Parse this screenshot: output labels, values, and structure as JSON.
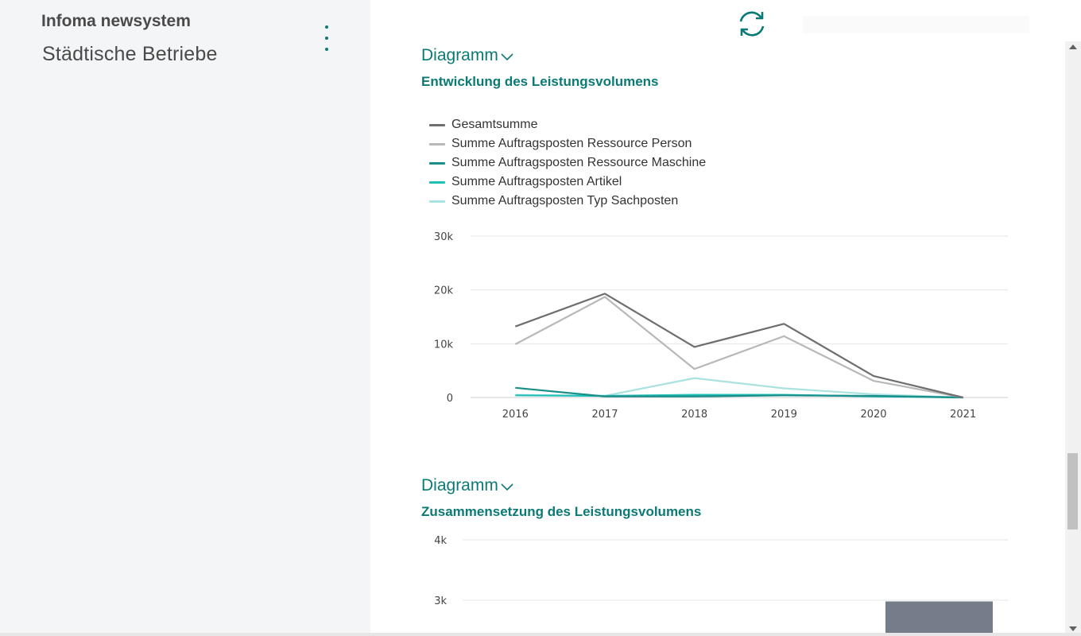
{
  "sidebar": {
    "app_name": "Infoma newsystem",
    "company": "Städtische Betriebe"
  },
  "icons": {
    "menu": "more-vertical-icon",
    "refresh": "refresh-icon",
    "chevron": "chevron-down-icon"
  },
  "colors": {
    "accent": "#0b7a75",
    "sidebar_bg": "#f4f5f7"
  },
  "section1": {
    "heading": "Diagramm",
    "chart_title": "Entwicklung des Leistungsvolumens"
  },
  "section2": {
    "heading": "Diagramm",
    "chart_title": "Zusammensetzung des Leistungsvolumens"
  },
  "chart_data": [
    {
      "type": "line",
      "title": "Entwicklung des Leistungsvolumens",
      "x": [
        "2016",
        "2017",
        "2018",
        "2019",
        "2020",
        "2021"
      ],
      "ylim": [
        0,
        30000
      ],
      "yticks": [
        "0",
        "10k",
        "20k",
        "30k"
      ],
      "grid": true,
      "legend": "top-left",
      "series": [
        {
          "name": "Gesamtsumme",
          "color": "#6e6e6e",
          "values": [
            13200,
            19300,
            9400,
            13700,
            4000,
            0
          ]
        },
        {
          "name": "Summe Auftragsposten Ressource Person",
          "color": "#b8b8b8",
          "values": [
            9900,
            18700,
            5300,
            11400,
            3100,
            0
          ]
        },
        {
          "name": "Summe Auftragsposten Ressource Maschine",
          "color": "#1a8e8a",
          "values": [
            1800,
            200,
            200,
            400,
            300,
            0
          ]
        },
        {
          "name": "Summe Auftragsposten Artikel",
          "color": "#20c0b8",
          "values": [
            400,
            300,
            500,
            500,
            200,
            0
          ]
        },
        {
          "name": "Summe Auftragsposten Typ Sachposten",
          "color": "#a9e2de",
          "values": [
            500,
            300,
            3600,
            1700,
            600,
            0
          ]
        }
      ]
    },
    {
      "type": "bar",
      "title": "Zusammensetzung des Leistungsvolumens",
      "ylim": [
        0,
        4000
      ],
      "yticks": [
        "3k",
        "4k"
      ],
      "grid": true,
      "series": [
        {
          "color": "#757d8a",
          "values": [
            2980
          ]
        }
      ]
    }
  ]
}
